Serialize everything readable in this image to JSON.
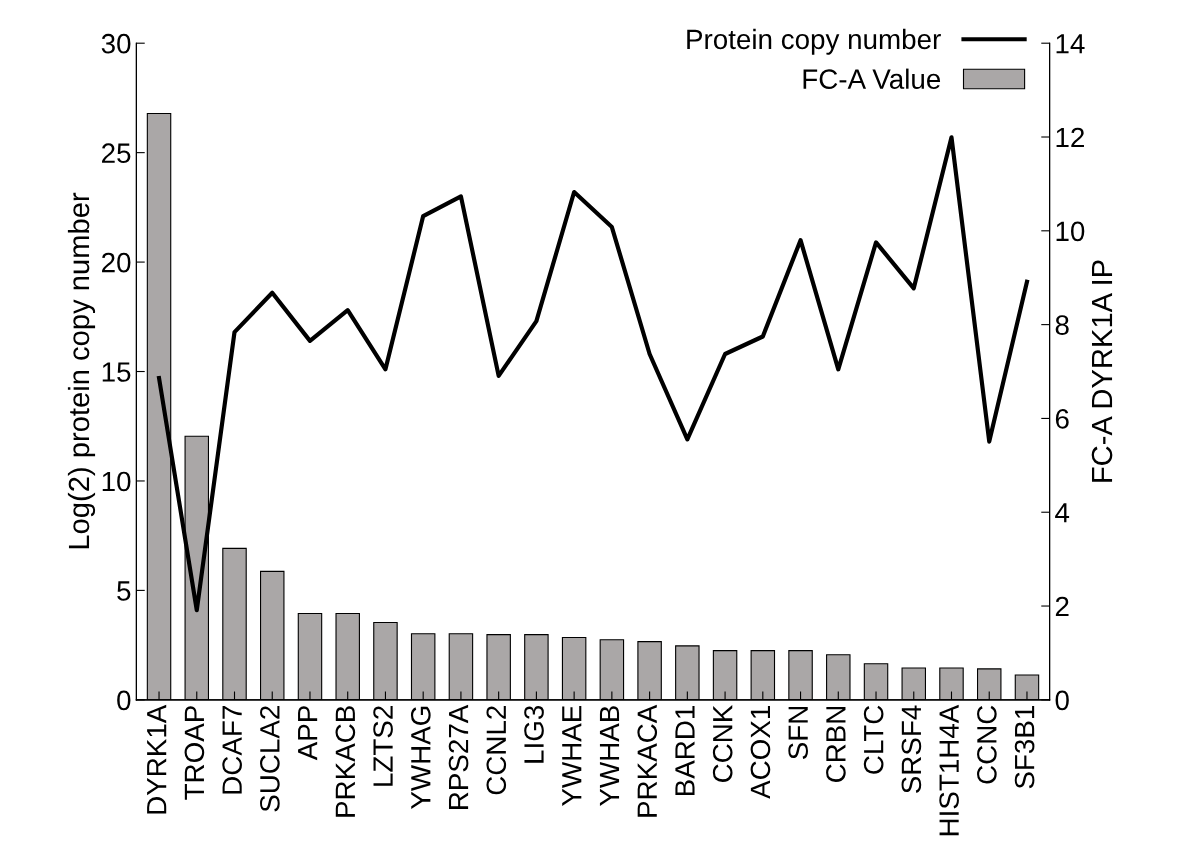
{
  "chart_data": {
    "type": "bar",
    "ylabel": "Log(2) protein copy number",
    "y2label": "FC-A DYRK1A IP",
    "categories": [
      "DYRK1A",
      "TROAP",
      "DCAF7",
      "SUCLA2",
      "APP",
      "PRKACB",
      "LZTS2",
      "YWHAG",
      "RPS27A",
      "CCNL2",
      "LIG3",
      "YWHAE",
      "YWHAB",
      "PRKACA",
      "BARD1",
      "CCNK",
      "ACOX1",
      "SFN",
      "CRBN",
      "CLTC",
      "SRSF4",
      "HIST1H4A",
      "CCNC",
      "SF3B1"
    ],
    "series": [
      {
        "name": "Protein copy number",
        "type": "line",
        "axis": "y",
        "color": "#000000",
        "values": [
          14.7,
          4.1,
          16.8,
          18.6,
          16.4,
          17.8,
          15.1,
          22.1,
          23.0,
          14.8,
          17.3,
          23.2,
          21.6,
          15.8,
          11.9,
          15.8,
          16.6,
          21.0,
          15.1,
          20.9,
          18.8,
          25.7,
          11.8,
          19.1
        ]
      },
      {
        "name": "FC-A Value",
        "axis": "y2",
        "color": "#aaa7a7",
        "values": [
          12.5,
          5.62,
          3.23,
          2.74,
          1.84,
          1.84,
          1.65,
          1.41,
          1.41,
          1.39,
          1.39,
          1.33,
          1.28,
          1.24,
          1.15,
          1.05,
          1.05,
          1.05,
          0.96,
          0.77,
          0.68,
          0.68,
          0.66,
          0.53
        ]
      }
    ],
    "ylim": [
      0,
      30
    ],
    "yticks": [
      0,
      5,
      10,
      15,
      20,
      25,
      30
    ],
    "y2lim": [
      0,
      14
    ],
    "y2ticks": [
      0,
      2,
      4,
      6,
      8,
      10,
      12,
      14
    ],
    "legend": "top right",
    "grid": false
  }
}
